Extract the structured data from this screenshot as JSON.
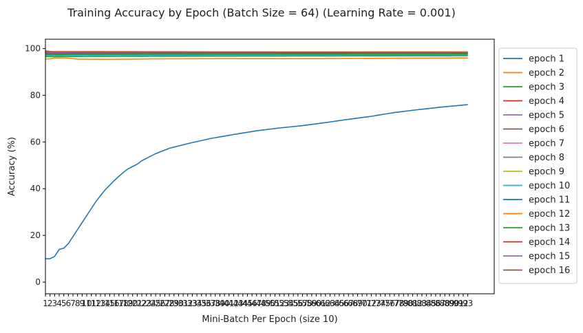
{
  "chart_data": {
    "type": "line",
    "title": "Training Accuracy by Epoch (Batch Size = 64) (Learning Rate = 0.001)",
    "xlabel": "Mini-Batch Per Epoch (size 10)",
    "ylabel": "Accuracy (%)",
    "ylim": [
      -5,
      104
    ],
    "yticks": [
      0,
      20,
      40,
      60,
      80,
      100
    ],
    "xlim": [
      1,
      95
    ],
    "xticks_start": 1,
    "xticks_end": 93,
    "grid": false,
    "legend_position": "outside-right",
    "x_count": 93,
    "series": [
      {
        "name": "epoch 1",
        "color": "#1f77b4",
        "keypoints": [
          [
            1,
            10
          ],
          [
            2,
            10
          ],
          [
            3,
            11
          ],
          [
            4,
            14
          ],
          [
            5,
            14.5
          ],
          [
            6,
            16.5
          ],
          [
            7,
            19.5
          ],
          [
            8,
            22.5
          ],
          [
            9,
            25.5
          ],
          [
            10,
            28.5
          ],
          [
            11,
            31.5
          ],
          [
            12,
            34.5
          ],
          [
            13,
            37
          ],
          [
            14,
            39.5
          ],
          [
            15,
            41.5
          ],
          [
            16,
            43.5
          ],
          [
            17,
            45.3
          ],
          [
            18,
            47
          ],
          [
            19,
            48.5
          ],
          [
            20,
            49.5
          ],
          [
            21,
            50.5
          ],
          [
            22,
            52
          ],
          [
            25,
            55
          ],
          [
            28,
            57.3
          ],
          [
            32,
            59.3
          ],
          [
            37,
            61.5
          ],
          [
            42,
            63.2
          ],
          [
            47,
            64.8
          ],
          [
            52,
            66
          ],
          [
            57,
            67
          ],
          [
            62,
            68.3
          ],
          [
            67,
            69.7
          ],
          [
            72,
            71
          ],
          [
            77,
            72.6
          ],
          [
            82,
            73.8
          ],
          [
            87,
            74.9
          ],
          [
            93,
            76
          ]
        ]
      },
      {
        "name": "epoch 2",
        "color": "#ff7f0e",
        "keypoints": [
          [
            1,
            95.5
          ],
          [
            2,
            95.6
          ],
          [
            3,
            96
          ],
          [
            6,
            95.9
          ],
          [
            8,
            95.5
          ],
          [
            15,
            95.4
          ],
          [
            25,
            95.6
          ],
          [
            40,
            95.7
          ],
          [
            60,
            95.7
          ],
          [
            80,
            95.9
          ],
          [
            93,
            96
          ]
        ]
      },
      {
        "name": "epoch 3",
        "color": "#2ca02c",
        "keypoints": [
          [
            1,
            96.5
          ],
          [
            10,
            96.6
          ],
          [
            30,
            96.7
          ],
          [
            60,
            96.8
          ],
          [
            93,
            96.9
          ]
        ]
      },
      {
        "name": "epoch 4",
        "color": "#d62728",
        "keypoints": [
          [
            1,
            98
          ],
          [
            10,
            98.2
          ],
          [
            30,
            98.1
          ],
          [
            60,
            98
          ],
          [
            93,
            97.9
          ]
        ]
      },
      {
        "name": "epoch 5",
        "color": "#9467bd",
        "keypoints": [
          [
            1,
            98.8
          ],
          [
            3,
            98.4
          ],
          [
            10,
            98.3
          ],
          [
            40,
            98.2
          ],
          [
            93,
            98.2
          ]
        ]
      },
      {
        "name": "epoch 6",
        "color": "#8c564b",
        "keypoints": [
          [
            1,
            97.5
          ],
          [
            10,
            97.6
          ],
          [
            40,
            97.7
          ],
          [
            93,
            97.8
          ]
        ]
      },
      {
        "name": "epoch 7",
        "color": "#e377c2",
        "keypoints": [
          [
            1,
            98.5
          ],
          [
            10,
            98.5
          ],
          [
            40,
            98.4
          ],
          [
            93,
            98.5
          ]
        ]
      },
      {
        "name": "epoch 8",
        "color": "#7f7f7f",
        "keypoints": [
          [
            1,
            97.8
          ],
          [
            10,
            97.6
          ],
          [
            40,
            97.7
          ],
          [
            93,
            97.7
          ]
        ]
      },
      {
        "name": "epoch 9",
        "color": "#bcbd22",
        "keypoints": [
          [
            1,
            97.2
          ],
          [
            10,
            97.3
          ],
          [
            40,
            97.4
          ],
          [
            93,
            97.4
          ]
        ]
      },
      {
        "name": "epoch 10",
        "color": "#17becf",
        "keypoints": [
          [
            1,
            97
          ],
          [
            10,
            97.1
          ],
          [
            40,
            97.2
          ],
          [
            93,
            97.3
          ]
        ]
      },
      {
        "name": "epoch 11",
        "color": "#1f77b4",
        "keypoints": [
          [
            1,
            99
          ],
          [
            3,
            98.5
          ],
          [
            10,
            98.2
          ],
          [
            40,
            98
          ],
          [
            93,
            98
          ]
        ]
      },
      {
        "name": "epoch 12",
        "color": "#ff7f0e",
        "keypoints": [
          [
            1,
            98.7
          ],
          [
            10,
            98.7
          ],
          [
            40,
            98.6
          ],
          [
            93,
            98.6
          ]
        ]
      },
      {
        "name": "epoch 13",
        "color": "#2ca02c",
        "keypoints": [
          [
            1,
            97.4
          ],
          [
            10,
            97.5
          ],
          [
            40,
            97.5
          ],
          [
            93,
            97.6
          ]
        ]
      },
      {
        "name": "epoch 14",
        "color": "#d62728",
        "keypoints": [
          [
            1,
            98.6
          ],
          [
            10,
            98.6
          ],
          [
            40,
            98.5
          ],
          [
            93,
            98.4
          ]
        ]
      },
      {
        "name": "epoch 15",
        "color": "#9467bd",
        "keypoints": [
          [
            1,
            98.3
          ],
          [
            10,
            98.3
          ],
          [
            40,
            98.3
          ],
          [
            93,
            98.3
          ]
        ]
      },
      {
        "name": "epoch 16",
        "color": "#8c564b",
        "keypoints": [
          [
            1,
            97.9
          ],
          [
            10,
            98
          ],
          [
            40,
            98.1
          ],
          [
            93,
            98.1
          ]
        ]
      }
    ]
  }
}
